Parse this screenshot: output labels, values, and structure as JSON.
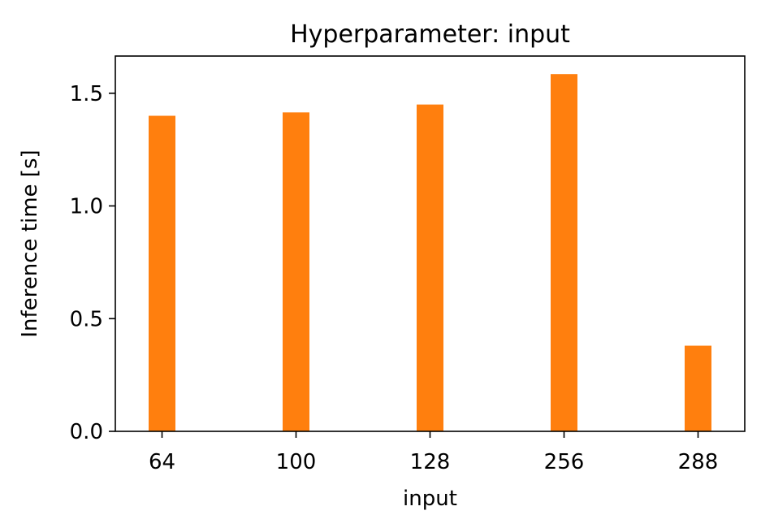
{
  "chart_data": {
    "type": "bar",
    "title": "Hyperparameter: input",
    "xlabel": "input",
    "ylabel": "Inference time [s]",
    "categories": [
      "64",
      "100",
      "128",
      "256",
      "288"
    ],
    "values": [
      1.4,
      1.415,
      1.45,
      1.585,
      0.38
    ],
    "ylim": [
      0,
      1.665
    ],
    "yticks": [
      0.0,
      0.5,
      1.0,
      1.5
    ],
    "ytick_labels": [
      "0.0",
      "0.5",
      "1.0",
      "1.5"
    ],
    "grid": false,
    "bar_color": "#ff7f0e"
  }
}
